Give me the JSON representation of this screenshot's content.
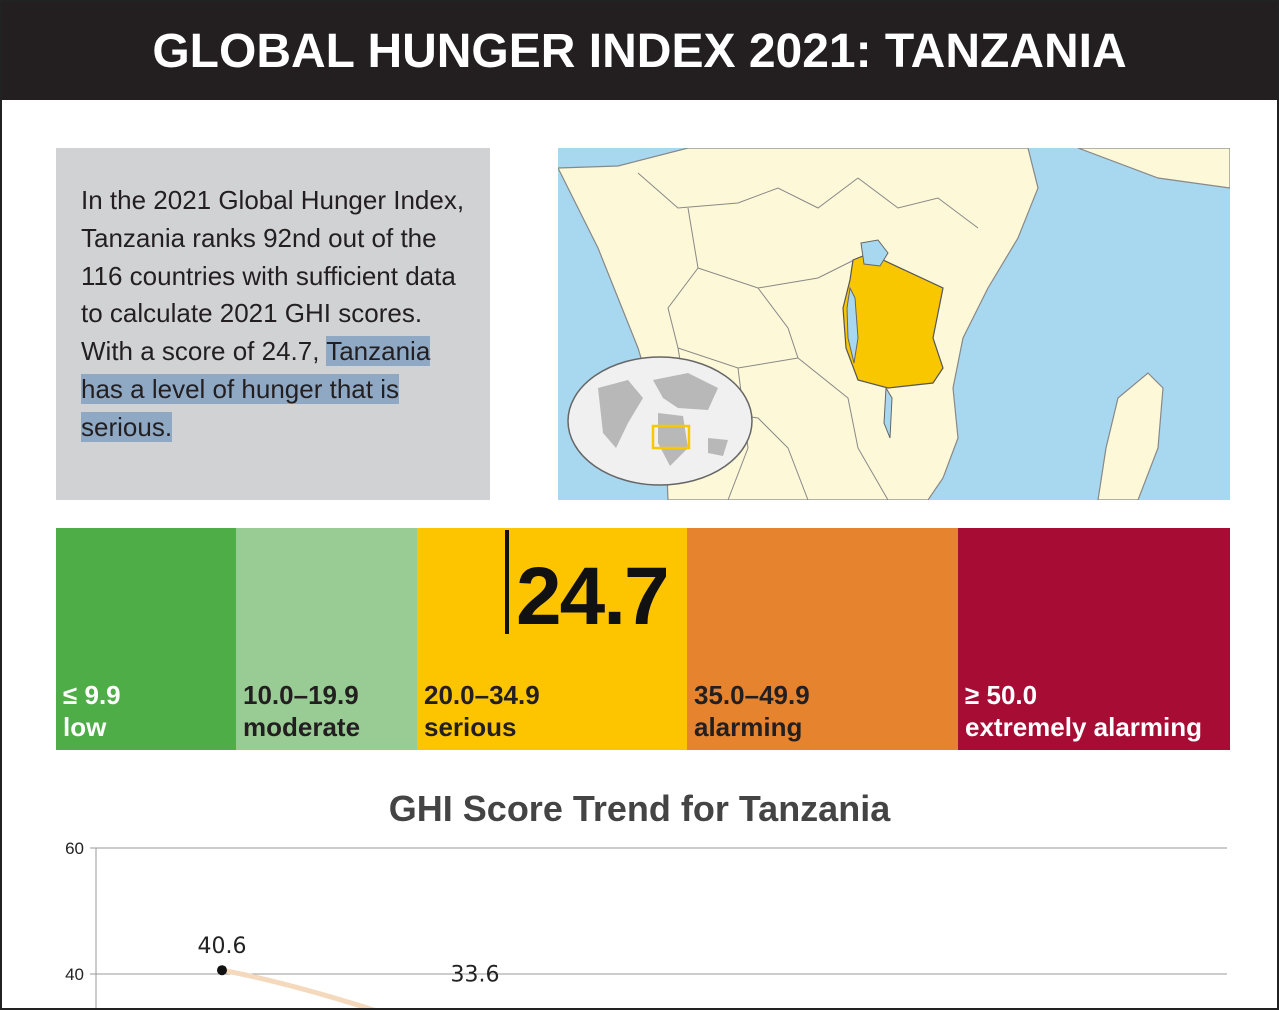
{
  "header": {
    "title": "GLOBAL HUNGER INDEX 2021: TANZANIA"
  },
  "summary": {
    "text_plain": "In the 2021 Global Hunger Index, Tanzania ranks 92nd out of the 116 countries with sufficient data to calculate 2021 GHI scores. With a score of 24.7, ",
    "text_highlight": "Tanzania has a level of hunger that is serious."
  },
  "map": {
    "highlight_color": "#f9c700",
    "water_color": "#a8d8f0",
    "land_color": "#fdf8d8"
  },
  "severity_scale": {
    "score": "24.7",
    "score_value": 24.7,
    "bands": [
      {
        "range": "≤ 9.9",
        "label": "low",
        "color": "#4fad48",
        "text_color": "#ffffff"
      },
      {
        "range": "10.0–19.9",
        "label": "moderate",
        "color": "#99cc95",
        "text_color": "#231f20"
      },
      {
        "range": "20.0–34.9",
        "label": "serious",
        "color": "#fdc500",
        "text_color": "#231f20"
      },
      {
        "range": "35.0–49.9",
        "label": "alarming",
        "color": "#e6832e",
        "text_color": "#231f20"
      },
      {
        "range": "≥ 50.0",
        "label": "extremely alarming",
        "color": "#a70d34",
        "text_color": "#ffffff"
      }
    ]
  },
  "chart_data": {
    "type": "line",
    "title": "GHI Score Trend for Tanzania",
    "xlabel": "",
    "ylabel": "",
    "y_ticks": [
      "60",
      "40"
    ],
    "ylim": [
      20,
      60
    ],
    "grid": true,
    "series": [
      {
        "points": [
          {
            "value": 40.6,
            "label": "40.6"
          },
          {
            "value": 33.6,
            "label": "33.6"
          }
        ]
      }
    ],
    "line_color": "#f5d9bd"
  }
}
